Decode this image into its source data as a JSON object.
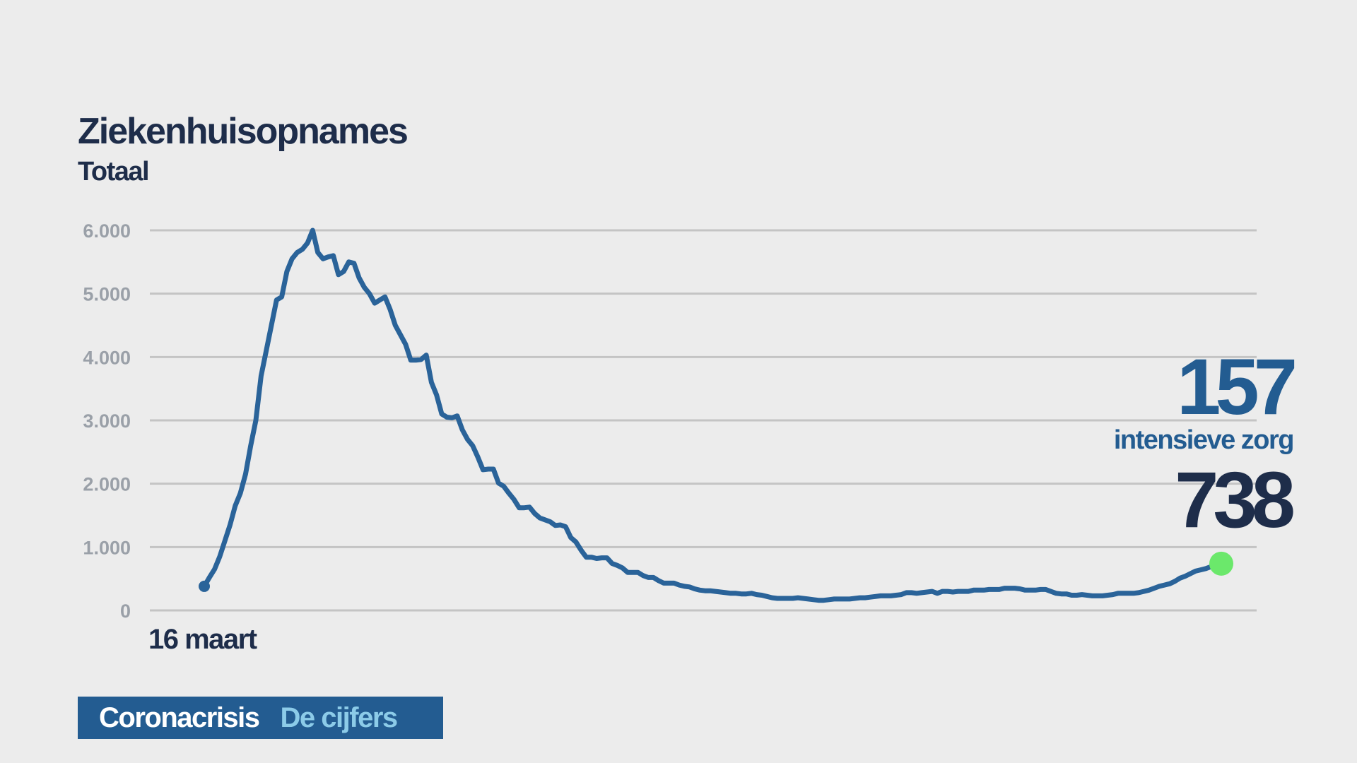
{
  "header": {
    "title": "Ziekenhuisopnames",
    "subtitle": "Totaal"
  },
  "callouts": {
    "intensive_care_value": "157",
    "intensive_care_label": "intensieve zorg",
    "total_value": "738"
  },
  "branding": {
    "main": "Coronacrisis",
    "sub": "De cijfers"
  },
  "colors": {
    "background": "#ececec",
    "line": "#2a6399",
    "text_dark": "#1e2d4a",
    "accent_blue": "#235c91",
    "grid": "#c4c4c4",
    "tick_text": "#9aa0a8",
    "end_marker": "#6be86b",
    "brand_sub": "#8ccbe8"
  },
  "chart_data": {
    "type": "line",
    "title": "Ziekenhuisopnames",
    "subtitle": "Totaal",
    "xlabel": "",
    "ylabel": "",
    "ylim": [
      0,
      6000
    ],
    "yticks": [
      0,
      1000,
      2000,
      3000,
      4000,
      5000,
      6000
    ],
    "ytick_labels": [
      "0",
      "1.000",
      "2.000",
      "3.000",
      "4.000",
      "5.000",
      "6.000"
    ],
    "x_start_label": "16 maart",
    "grid": true,
    "legend": "none",
    "series": [
      {
        "values": [
          380,
          520,
          650,
          850,
          1100,
          1350,
          1650,
          1850,
          2150,
          2600,
          3000,
          3700,
          4100,
          4500,
          4900,
          4950,
          5350,
          5550,
          5650,
          5700,
          5800,
          6000,
          5650,
          5550,
          5580,
          5600,
          5300,
          5350,
          5500,
          5480,
          5250,
          5100,
          5000,
          4850,
          4900,
          4950,
          4750,
          4500,
          4350,
          4200,
          3950,
          3950,
          3960,
          4030,
          3600,
          3400,
          3100,
          3050,
          3040,
          3070,
          2850,
          2700,
          2600,
          2420,
          2220,
          2230,
          2230,
          2010,
          1960,
          1850,
          1750,
          1620,
          1620,
          1630,
          1530,
          1460,
          1430,
          1400,
          1340,
          1350,
          1320,
          1150,
          1080,
          950,
          840,
          840,
          820,
          830,
          830,
          740,
          710,
          670,
          600,
          600,
          600,
          550,
          520,
          520,
          470,
          430,
          430,
          430,
          400,
          380,
          370,
          340,
          320,
          310,
          310,
          300,
          290,
          280,
          270,
          270,
          260,
          260,
          270,
          250,
          240,
          220,
          200,
          190,
          190,
          190,
          190,
          200,
          190,
          180,
          170,
          160,
          160,
          170,
          180,
          180,
          180,
          180,
          190,
          200,
          200,
          210,
          220,
          230,
          230,
          230,
          240,
          250,
          280,
          280,
          270,
          280,
          290,
          300,
          270,
          300,
          300,
          290,
          300,
          300,
          300,
          320,
          320,
          320,
          330,
          330,
          330,
          350,
          350,
          350,
          340,
          320,
          320,
          320,
          330,
          330,
          300,
          270,
          260,
          260,
          240,
          240,
          250,
          240,
          230,
          230,
          230,
          240,
          250,
          270,
          270,
          270,
          270,
          280,
          300,
          320,
          350,
          380,
          400,
          420,
          460,
          510,
          540,
          580,
          620,
          640,
          660,
          690,
          730,
          738
        ]
      }
    ]
  }
}
